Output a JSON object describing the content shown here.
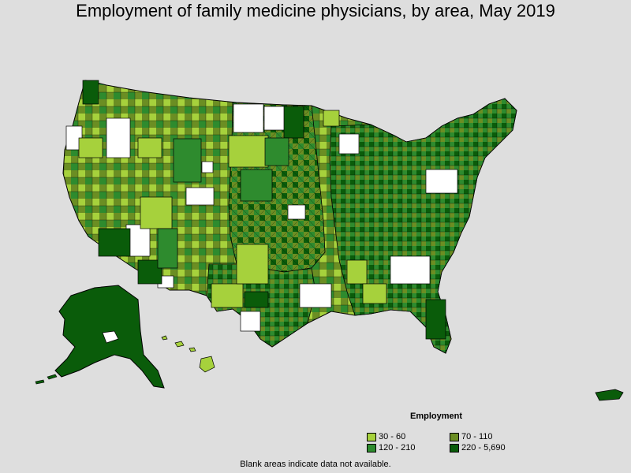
{
  "title": "Employment of family medicine physicians, by area, May 2019",
  "legend": {
    "title": "Employment",
    "items": [
      {
        "label": "30 - 60",
        "color": "#a6d13c"
      },
      {
        "label": "70 - 110",
        "color": "#6b8e23"
      },
      {
        "label": "120 - 210",
        "color": "#2e8b2e"
      },
      {
        "label": "220 - 5,690",
        "color": "#0a5c0a"
      }
    ]
  },
  "note": "Blank areas indicate data not available.",
  "colors": {
    "background": "#dedede",
    "no_data": "#ffffff",
    "border": "#000000"
  }
}
